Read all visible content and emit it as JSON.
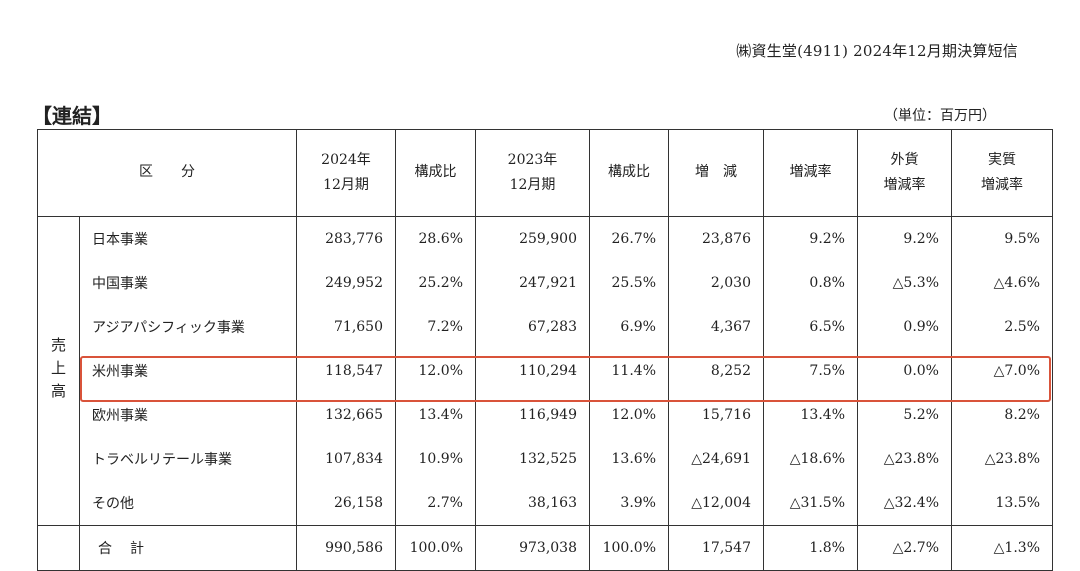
{
  "doc_header": "㈱資生堂(4911) 2024年12月期決算短信",
  "section_title": "【連結】",
  "unit_note": "（単位：百万円）",
  "headers": {
    "category": "区　　分",
    "fy2024_line1": "2024年",
    "fy2024_line2": "12月期",
    "ratio_2024": "構成比",
    "fy2023_line1": "2023年",
    "fy2023_line2": "12月期",
    "ratio_2023": "構成比",
    "change": "増　減",
    "change_rate": "増減率",
    "fx_line1": "外貨",
    "fx_line2": "増減率",
    "real_line1": "実質",
    "real_line2": "増減率"
  },
  "row_group_label": "売上高",
  "rows": [
    {
      "segment": "日本事業",
      "fy2024": "283,776",
      "ratio2024": "28.6%",
      "fy2023": "259,900",
      "ratio2023": "26.7%",
      "change": "23,876",
      "change_rate": "9.2%",
      "fx_rate": "9.2%",
      "real_rate": "9.5%"
    },
    {
      "segment": "中国事業",
      "fy2024": "249,952",
      "ratio2024": "25.2%",
      "fy2023": "247,921",
      "ratio2023": "25.5%",
      "change": "2,030",
      "change_rate": "0.8%",
      "fx_rate": "△5.3%",
      "real_rate": "△4.6%"
    },
    {
      "segment": "アジアパシフィック事業",
      "fy2024": "71,650",
      "ratio2024": "7.2%",
      "fy2023": "67,283",
      "ratio2023": "6.9%",
      "change": "4,367",
      "change_rate": "6.5%",
      "fx_rate": "0.9%",
      "real_rate": "2.5%"
    },
    {
      "segment": "米州事業",
      "fy2024": "118,547",
      "ratio2024": "12.0%",
      "fy2023": "110,294",
      "ratio2023": "11.4%",
      "change": "8,252",
      "change_rate": "7.5%",
      "fx_rate": "0.0%",
      "real_rate": "△7.0%"
    },
    {
      "segment": "欧州事業",
      "fy2024": "132,665",
      "ratio2024": "13.4%",
      "fy2023": "116,949",
      "ratio2023": "12.0%",
      "change": "15,716",
      "change_rate": "13.4%",
      "fx_rate": "5.2%",
      "real_rate": "8.2%"
    },
    {
      "segment": "トラベルリテール事業",
      "fy2024": "107,834",
      "ratio2024": "10.9%",
      "fy2023": "132,525",
      "ratio2023": "13.6%",
      "change": "△24,691",
      "change_rate": "△18.6%",
      "fx_rate": "△23.8%",
      "real_rate": "△23.8%"
    },
    {
      "segment": "その他",
      "fy2024": "26,158",
      "ratio2024": "2.7%",
      "fy2023": "38,163",
      "ratio2023": "3.9%",
      "change": "△12,004",
      "change_rate": "△31.5%",
      "fx_rate": "△32.4%",
      "real_rate": "13.5%"
    }
  ],
  "total": {
    "segment": "合計",
    "fy2024": "990,586",
    "ratio2024": "100.0%",
    "fy2023": "973,038",
    "ratio2023": "100.0%",
    "change": "17,547",
    "change_rate": "1.8%",
    "fx_rate": "△2.7%",
    "real_rate": "△1.3%"
  },
  "highlighted_row": "米州事業",
  "colors": {
    "highlight_border": "#d9533a",
    "grid": "#333333",
    "text": "#222222"
  }
}
